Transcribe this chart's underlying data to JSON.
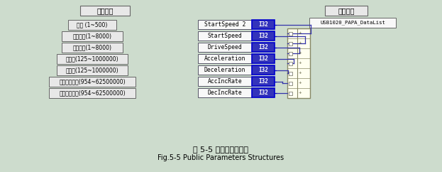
{
  "bg_color": "#cddccd",
  "fig_width": 6.23,
  "fig_height": 2.42,
  "title_cn": "图 5-5 公用参数结构体",
  "title_en": "Fig.5-5 Public Parameters Structures",
  "hardware_label": "硬件参数",
  "public_label": "公用参数",
  "left_boxes": [
    "倍率 (1~500)",
    "初始速度(1~8000)",
    "驱动速度(1~8000)",
    "加速度(125~1000000)",
    "减速度(125~1000000)",
    "加速度变化率(954~62500000)",
    "减速度变化率(954~62500000)"
  ],
  "middle_labels": [
    "StartSpeed 2",
    "StartSpeed",
    "DriveSpeed",
    "Acceleration",
    "Deceleration",
    "AccIncRate",
    "DecIncRate"
  ],
  "i32_label": "I32",
  "right_struct_label": "USB1020_PAPA_DataList",
  "box_border_color": "#555555",
  "blue_color": "#2222aa",
  "i32_fill": "#3333bb",
  "i32_border": "#0000cc",
  "i32_text_color": "#ffffff",
  "connector_color": "#3333aa",
  "struct_fill": "#fffff0",
  "struct_border": "#888866",
  "header_fill": "#e8e8e8",
  "left_box_fill": "#e8e8e8",
  "mid_box_fill": "#f8f8f8",
  "usb_box_fill": "#f8f8f8"
}
